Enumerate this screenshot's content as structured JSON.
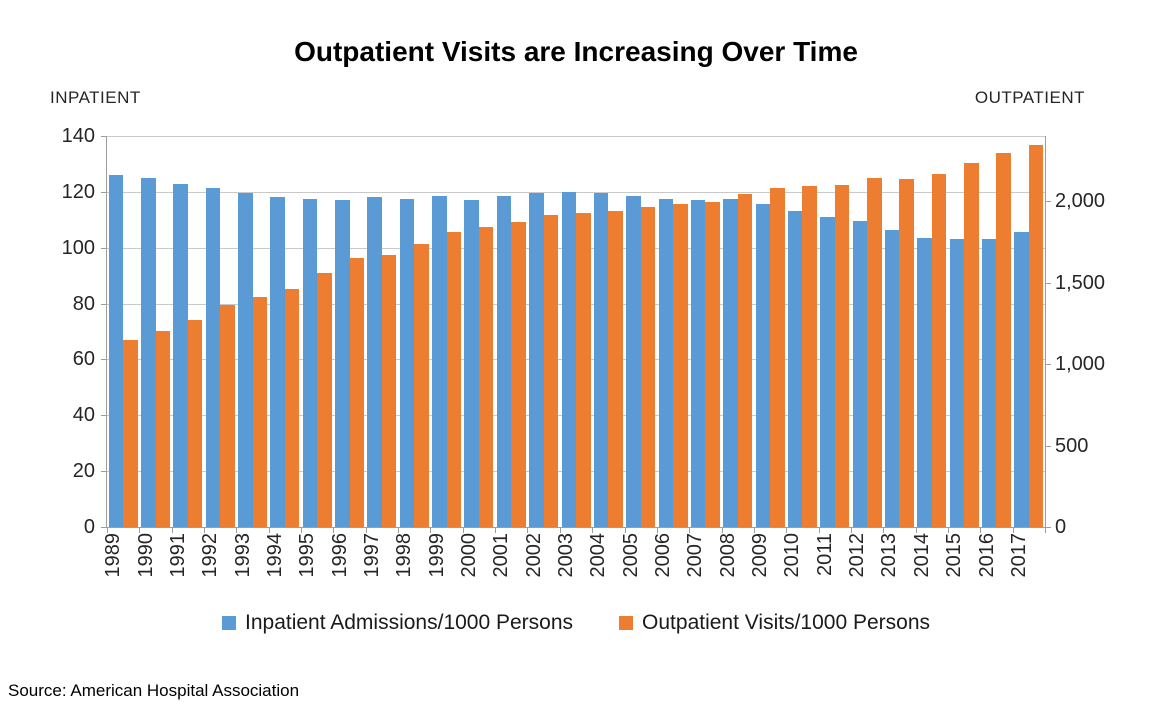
{
  "title": "Outpatient Visits are Increasing Over Time",
  "source": "Source: American Hospital Association",
  "left_axis": {
    "caption": "INPATIENT",
    "tick_labels": [
      "0",
      "20",
      "40",
      "60",
      "80",
      "100",
      "120",
      "140"
    ],
    "tick_values": [
      0,
      20,
      40,
      60,
      80,
      100,
      120,
      140
    ],
    "max": 140
  },
  "right_axis": {
    "caption": "OUTPATIENT",
    "tick_labels": [
      "0",
      "500",
      "1,000",
      "1,500",
      "2,000"
    ],
    "tick_values": [
      0,
      500,
      1000,
      1500,
      2000
    ],
    "max": 2400
  },
  "legend": [
    {
      "label": "Inpatient Admissions/1000 Persons",
      "color": "#5B9BD5"
    },
    {
      "label": "Outpatient Visits/1000 Persons",
      "color": "#ED7D31"
    }
  ],
  "colors": {
    "inpatient_blue": "#5B9BD5",
    "outpatient_orange": "#ED7D31",
    "gridline": "#c9c9c9",
    "axis": "#9d9d9d"
  },
  "chart_data": {
    "type": "bar",
    "title": "Outpatient Visits are Increasing Over Time",
    "categories": [
      1989,
      1990,
      1991,
      1992,
      1993,
      1994,
      1995,
      1996,
      1997,
      1998,
      1999,
      2000,
      2001,
      2002,
      2003,
      2004,
      2005,
      2006,
      2007,
      2008,
      2009,
      2010,
      2011,
      2012,
      2013,
      2014,
      2015,
      2016,
      2017
    ],
    "series": [
      {
        "name": "Inpatient Admissions/1000 Persons",
        "axis": "left",
        "color": "#5B9BD5",
        "values": [
          126,
          125,
          123,
          121.5,
          119.5,
          118,
          117.5,
          117,
          118,
          117.5,
          118.5,
          117,
          118.5,
          119.5,
          120,
          119.5,
          118.5,
          117.5,
          117,
          117.5,
          115.5,
          113,
          111,
          109.5,
          106.5,
          103.5,
          103,
          103,
          105.5
        ]
      },
      {
        "name": "Outpatient Visits/1000 Persons",
        "axis": "right",
        "color": "#ED7D31",
        "values": [
          1150,
          1205,
          1270,
          1365,
          1415,
          1460,
          1560,
          1650,
          1670,
          1740,
          1810,
          1840,
          1875,
          1915,
          1925,
          1940,
          1965,
          1985,
          1995,
          2045,
          2080,
          2095,
          2100,
          2145,
          2135,
          2165,
          2235,
          2295,
          2345
        ]
      }
    ],
    "left_ylim": [
      0,
      140
    ],
    "right_ylim": [
      0,
      2400
    ],
    "left_tick_step": 20,
    "right_tick_values": [
      0,
      500,
      1000,
      1500,
      2000
    ],
    "grid": true,
    "legend_position": "bottom",
    "xlabel": "",
    "ylabel_left": "INPATIENT",
    "ylabel_right": "OUTPATIENT"
  }
}
